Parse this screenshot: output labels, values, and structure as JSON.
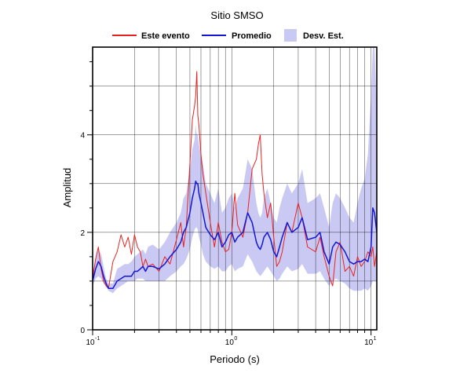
{
  "chart_data": {
    "type": "line",
    "title": "Sitio SMSO",
    "xlabel": "Periodo (s)",
    "ylabel": "Amplitud",
    "x_scale": "log",
    "xlim": [
      0.1,
      11
    ],
    "ylim": [
      0,
      5.8
    ],
    "grid": true,
    "legend_position": "top",
    "x_ticks": [
      {
        "value": 0.1,
        "base": "10",
        "exp": "-1"
      },
      {
        "value": 1,
        "base": "10",
        "exp": "0"
      },
      {
        "value": 10,
        "base": "10",
        "exp": "1"
      }
    ],
    "y_ticks": [
      0,
      2,
      4
    ],
    "legend": [
      {
        "kind": "line",
        "label": "Este evento",
        "color": "#e8231f"
      },
      {
        "kind": "line",
        "label": "Promedio",
        "color": "#1515d6"
      },
      {
        "kind": "band",
        "label": "Desv. Est.",
        "color": "#c9c9f4"
      }
    ],
    "x": [
      0.1,
      0.105,
      0.11,
      0.115,
      0.12,
      0.125,
      0.13,
      0.14,
      0.15,
      0.16,
      0.17,
      0.18,
      0.19,
      0.2,
      0.21,
      0.22,
      0.23,
      0.24,
      0.25,
      0.27,
      0.3,
      0.33,
      0.36,
      0.4,
      0.43,
      0.45,
      0.47,
      0.5,
      0.52,
      0.54,
      0.55,
      0.56,
      0.57,
      0.58,
      0.6,
      0.62,
      0.65,
      0.7,
      0.75,
      0.8,
      0.85,
      0.9,
      0.95,
      1.0,
      1.05,
      1.1,
      1.2,
      1.3,
      1.4,
      1.5,
      1.55,
      1.6,
      1.65,
      1.7,
      1.8,
      1.9,
      2.0,
      2.1,
      2.2,
      2.3,
      2.5,
      2.7,
      3.0,
      3.2,
      3.5,
      4.0,
      4.3,
      4.6,
      5.0,
      5.3,
      5.6,
      6.0,
      6.5,
      7.0,
      7.5,
      8.0,
      8.5,
      9.0,
      9.5,
      10.0,
      10.3,
      10.6,
      11.0
    ],
    "series": [
      {
        "name": "Este evento",
        "color": "#e8231f",
        "values": [
          1.05,
          1.45,
          1.7,
          1.25,
          1.0,
          0.9,
          0.85,
          1.4,
          1.6,
          1.95,
          1.7,
          1.9,
          1.55,
          1.95,
          1.7,
          1.6,
          1.3,
          1.45,
          1.3,
          1.35,
          1.2,
          1.5,
          1.35,
          1.85,
          2.2,
          1.7,
          2.1,
          3.4,
          4.3,
          4.6,
          4.8,
          5.3,
          4.4,
          4.2,
          3.6,
          3.2,
          2.8,
          2.2,
          1.7,
          2.2,
          1.8,
          1.6,
          1.65,
          2.0,
          2.8,
          2.15,
          1.9,
          2.4,
          3.3,
          3.5,
          3.8,
          4.0,
          3.2,
          2.8,
          2.3,
          2.6,
          1.9,
          1.3,
          1.4,
          1.6,
          2.2,
          2.0,
          2.6,
          2.3,
          1.7,
          1.6,
          1.9,
          1.5,
          1.1,
          0.9,
          1.6,
          1.8,
          1.2,
          1.3,
          1.1,
          1.5,
          1.3,
          1.4,
          1.6,
          1.5,
          1.7,
          1.3,
          1.6
        ]
      },
      {
        "name": "Promedio",
        "color": "#1515d6",
        "values": [
          1.0,
          1.25,
          1.4,
          1.3,
          1.1,
          0.95,
          0.85,
          0.85,
          1.0,
          1.05,
          1.1,
          1.1,
          1.1,
          1.2,
          1.2,
          1.25,
          1.3,
          1.2,
          1.3,
          1.3,
          1.25,
          1.35,
          1.5,
          1.65,
          1.8,
          2.0,
          2.1,
          2.4,
          2.7,
          2.9,
          3.05,
          3.0,
          3.0,
          2.8,
          2.6,
          2.4,
          2.1,
          1.95,
          1.85,
          2.0,
          1.7,
          1.8,
          1.95,
          2.0,
          1.8,
          1.9,
          2.0,
          2.4,
          2.2,
          1.8,
          1.7,
          1.65,
          1.75,
          1.9,
          2.0,
          1.85,
          1.6,
          1.5,
          1.7,
          1.9,
          2.2,
          2.0,
          2.1,
          2.3,
          1.85,
          1.9,
          2.0,
          1.6,
          1.35,
          1.7,
          1.8,
          1.75,
          1.6,
          1.4,
          1.35,
          1.4,
          1.4,
          1.45,
          1.4,
          1.7,
          2.5,
          2.4,
          2.0
        ]
      }
    ],
    "std_band": {
      "lower": [
        0.9,
        1.05,
        1.1,
        1.05,
        0.95,
        0.9,
        0.8,
        0.75,
        0.85,
        0.9,
        0.95,
        1.0,
        1.0,
        1.0,
        1.05,
        1.05,
        1.05,
        1.0,
        1.0,
        1.0,
        1.0,
        1.0,
        1.1,
        1.2,
        1.3,
        1.35,
        1.45,
        1.65,
        1.9,
        2.05,
        2.1,
        2.1,
        2.05,
        1.9,
        1.75,
        1.55,
        1.4,
        1.3,
        1.25,
        1.3,
        1.2,
        1.2,
        1.3,
        1.35,
        1.2,
        1.25,
        1.3,
        1.55,
        1.4,
        1.2,
        1.15,
        1.1,
        1.15,
        1.2,
        1.3,
        1.2,
        1.1,
        1.0,
        1.05,
        1.15,
        1.3,
        1.2,
        1.25,
        1.35,
        1.15,
        1.15,
        1.2,
        1.05,
        0.9,
        1.0,
        1.05,
        1.0,
        0.95,
        0.85,
        0.8,
        0.8,
        0.8,
        0.85,
        0.8,
        0.9,
        1.0,
        1.0,
        1.0
      ],
      "upper": [
        1.15,
        1.45,
        1.65,
        1.55,
        1.3,
        1.05,
        0.95,
        0.95,
        1.25,
        1.3,
        1.35,
        1.35,
        1.4,
        1.5,
        1.55,
        1.6,
        1.65,
        1.55,
        1.7,
        1.75,
        1.65,
        1.8,
        2.0,
        2.2,
        2.4,
        2.7,
        2.8,
        3.3,
        3.7,
        3.9,
        4.2,
        4.0,
        4.0,
        3.8,
        3.6,
        3.4,
        3.0,
        2.8,
        2.6,
        2.9,
        2.4,
        2.5,
        2.7,
        2.8,
        2.5,
        2.7,
        2.9,
        3.5,
        3.3,
        2.6,
        2.4,
        2.3,
        2.4,
        2.7,
        2.9,
        2.6,
        2.3,
        2.2,
        2.5,
        2.7,
        3.0,
        2.8,
        3.0,
        3.3,
        2.6,
        2.7,
        2.8,
        2.5,
        2.1,
        2.6,
        2.8,
        2.7,
        2.5,
        2.3,
        2.2,
        2.6,
        2.9,
        3.1,
        3.6,
        4.8,
        5.8,
        5.8,
        4.5
      ]
    }
  }
}
